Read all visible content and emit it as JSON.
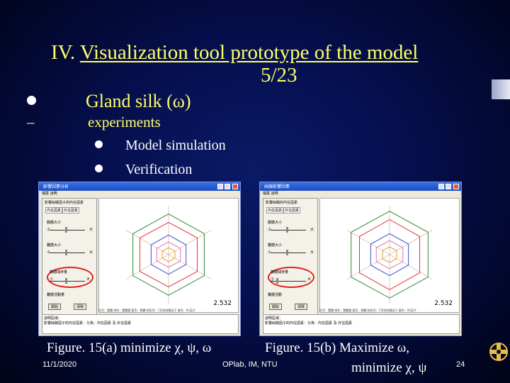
{
  "slide": {
    "title_number": "IV.",
    "title_text": "Visualization tool prototype of the model",
    "title_page": "5/23",
    "bullet_main": "Gland silk (ω)",
    "dash": "–",
    "dash_text": "experiments",
    "sub_items": [
      "Model simulation",
      "Verification"
    ],
    "caption_a": "Figure. 15(a) minimize χ, ψ, ω",
    "caption_b_line1": "Figure. 15(b) Maximize ω,",
    "caption_b_line2": "minimize χ, ψ",
    "footer_date": "11/1/2020",
    "footer_center": "OPlab, IM, NTU",
    "page_number": "24"
  },
  "window_a": {
    "title": "影響因素分析",
    "menu": "檔案  說明",
    "group_title": "影響絲腺因子的內在因素",
    "tabs": [
      "內在因素",
      "外在因素"
    ],
    "label1": "腺體大小",
    "label2": "蠶體大小",
    "label3": "腺體儲存量",
    "label4": "蠶體活動量",
    "small": "小",
    "large": "大",
    "button_start": "開始",
    "button_clear": "清除",
    "value": "2.532",
    "legend": "紅色：蠶體  綠色：蠶體重  藍色：腺體  粉紅色：CSI對絲腺因子  黃色：AC因子",
    "desc_label": "說明區域：",
    "desc_text": "影響絲腺因子的內在因素：分為：內在因素 及 外在因素"
  },
  "window_b": {
    "title": "絲腺影響因素",
    "menu": "檔案  說明",
    "group_title": "影響絲腺的內在因素",
    "tabs": [
      "內在因素",
      "外在因素"
    ],
    "label1": "腺體大小",
    "label2": "蠶體大小",
    "label3": "腺體儲存量",
    "label4": "蠶體活動",
    "small": "小",
    "large": "大",
    "button_start": "開始",
    "button_clear": "清除",
    "value": "2.532",
    "legend": "紅色：蠶體  綠色：蠶體重  藍色：腺體  粉紅色：CSI對絲腺因子  黃色：AC因子",
    "desc_label": "說明區域：",
    "desc_text": "影響絲腺因子的內在因素：分為：內在因素 及 外在因素"
  },
  "colors": {
    "title": "#ffff66",
    "radar_red": "#e03030",
    "radar_green": "#2a8a2a",
    "radar_blue": "#3050d0",
    "radar_pink": "#e070b0",
    "radar_orange": "#e0a020"
  }
}
